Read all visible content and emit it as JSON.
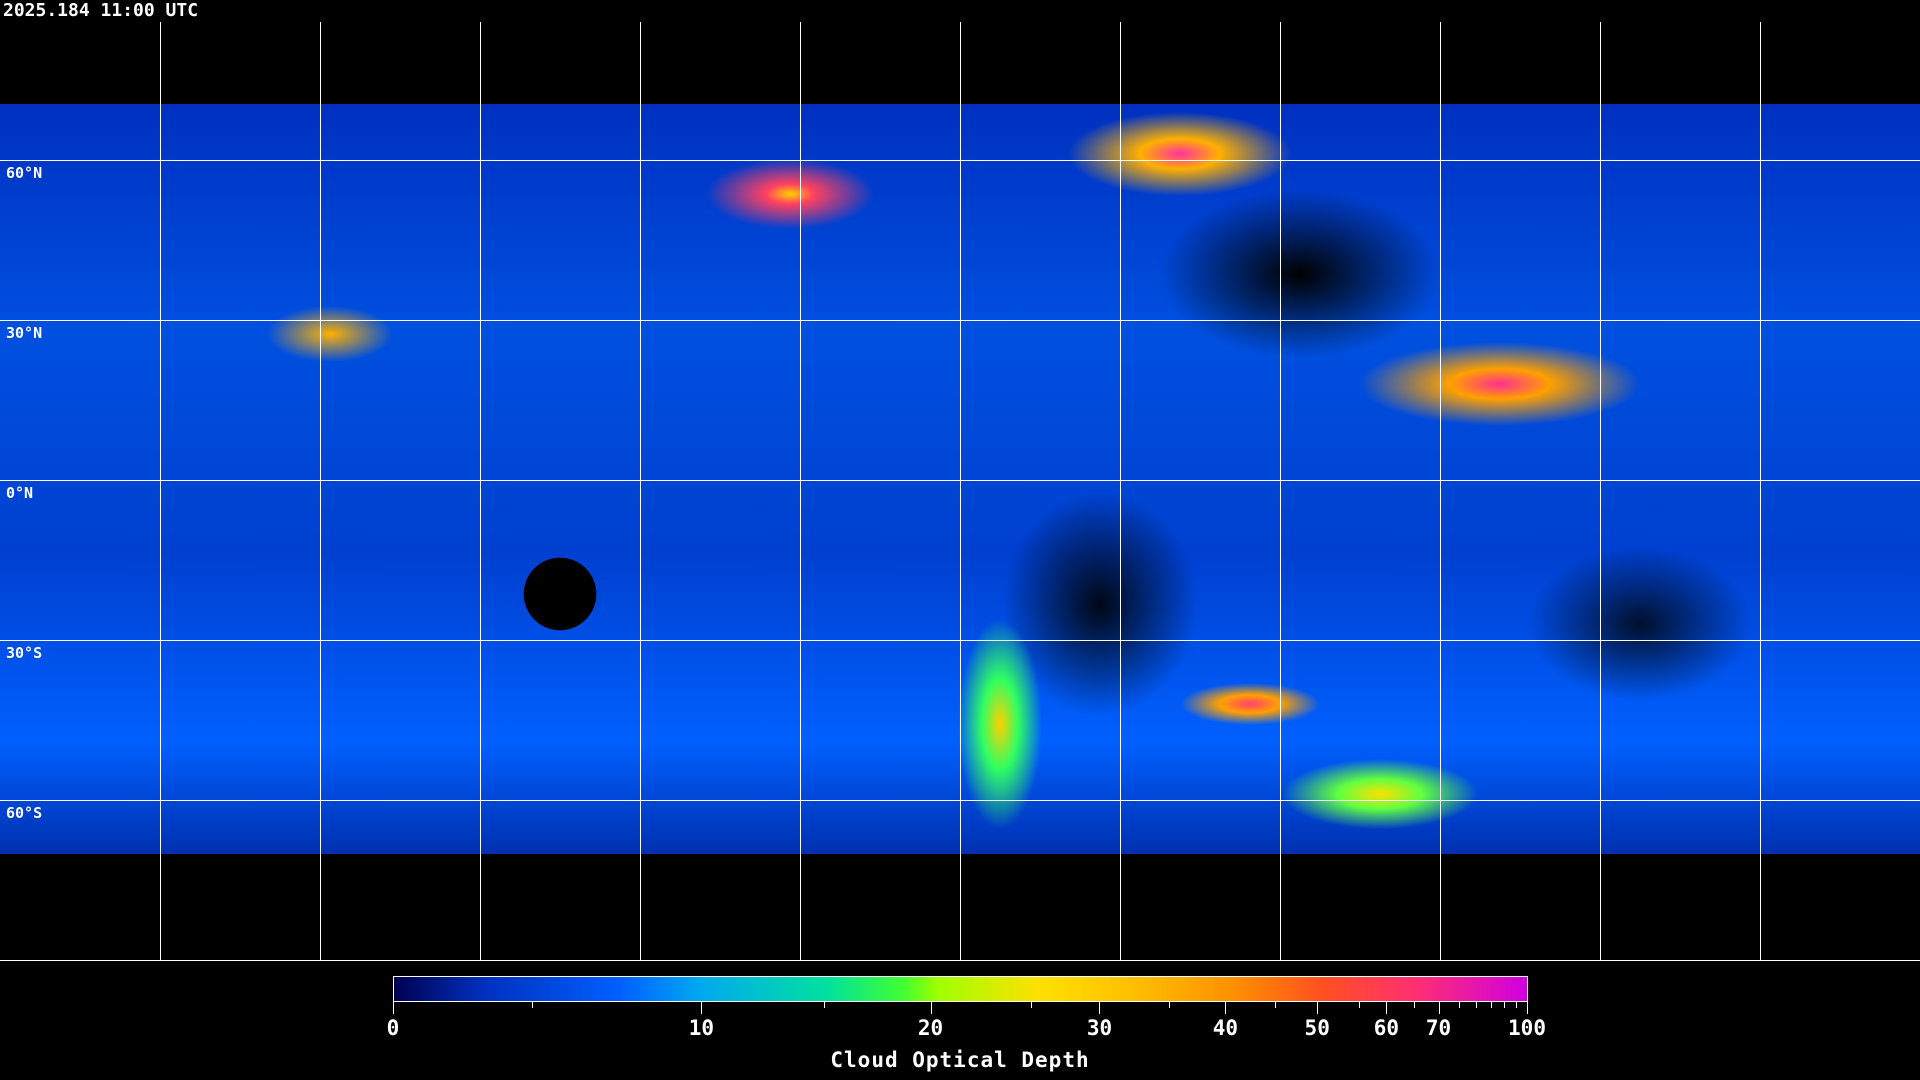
{
  "timestamp": "2025.184 11:00 UTC",
  "map": {
    "projection": "equirectangular",
    "latitude_labels": [
      "60°N",
      "30°N",
      "0°N",
      "30°S",
      "60°S"
    ],
    "grid_spacing_degrees": 30
  },
  "colorbar": {
    "title": "Cloud Optical Depth",
    "range": [
      0,
      100
    ],
    "tick_labels": [
      "0",
      "10",
      "20",
      "30",
      "40",
      "50",
      "60",
      "70",
      "100"
    ],
    "colors": [
      "#000050",
      "#0060ff",
      "#00a8f0",
      "#40ff30",
      "#ffe000",
      "#ff9000",
      "#ff5020",
      "#d000e0"
    ]
  }
}
